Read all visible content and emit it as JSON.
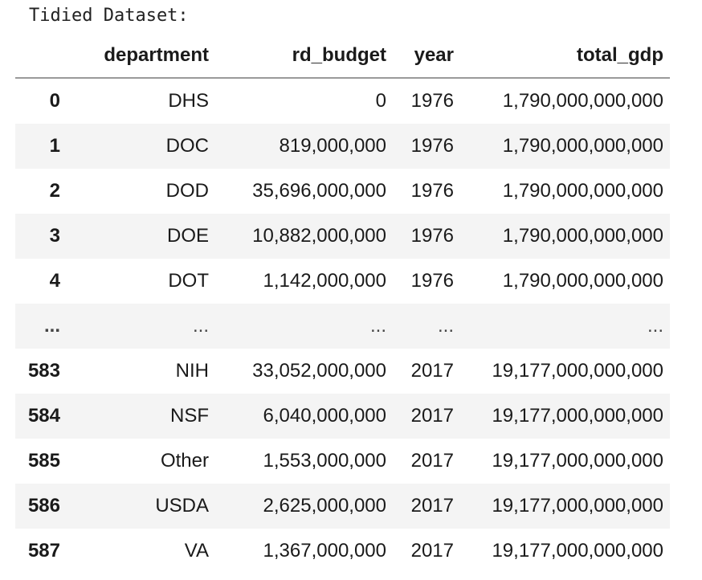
{
  "output_label": "Tidied Dataset:",
  "table": {
    "columns": [
      "",
      "department",
      "rd_budget",
      "year",
      "total_gdp"
    ],
    "rows": [
      [
        "0",
        "DHS",
        "0",
        "1976",
        "1,790,000,000,000"
      ],
      [
        "1",
        "DOC",
        "819,000,000",
        "1976",
        "1,790,000,000,000"
      ],
      [
        "2",
        "DOD",
        "35,696,000,000",
        "1976",
        "1,790,000,000,000"
      ],
      [
        "3",
        "DOE",
        "10,882,000,000",
        "1976",
        "1,790,000,000,000"
      ],
      [
        "4",
        "DOT",
        "1,142,000,000",
        "1976",
        "1,790,000,000,000"
      ],
      [
        "...",
        "...",
        "...",
        "...",
        "..."
      ],
      [
        "583",
        "NIH",
        "33,052,000,000",
        "2017",
        "19,177,000,000,000"
      ],
      [
        "584",
        "NSF",
        "6,040,000,000",
        "2017",
        "19,177,000,000,000"
      ],
      [
        "585",
        "Other",
        "1,553,000,000",
        "2017",
        "19,177,000,000,000"
      ],
      [
        "586",
        "USDA",
        "2,625,000,000",
        "2017",
        "19,177,000,000,000"
      ],
      [
        "587",
        "VA",
        "1,367,000,000",
        "2017",
        "19,177,000,000,000"
      ]
    ]
  }
}
